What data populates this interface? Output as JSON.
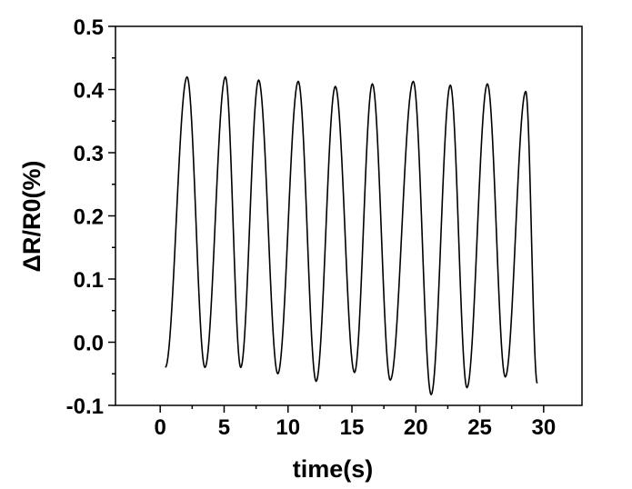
{
  "chart_data": {
    "type": "line",
    "title": "",
    "xlabel": "time(s)",
    "ylabel": "ΔR/R0(%)",
    "xlim": [
      -3.5,
      33
    ],
    "ylim": [
      -0.1,
      0.5
    ],
    "xticks": [
      0,
      5,
      10,
      15,
      20,
      25,
      30
    ],
    "xtick_labels": [
      "0",
      "5",
      "10",
      "15",
      "20",
      "25",
      "30"
    ],
    "yticks": [
      -0.1,
      0.0,
      0.1,
      0.2,
      0.3,
      0.4,
      0.5
    ],
    "ytick_labels": [
      "-0.1",
      "0.0",
      "0.1",
      "0.2",
      "0.3",
      "0.4",
      "0.5"
    ],
    "grid": false,
    "legend": "none",
    "line_color": "#000000",
    "series": [
      {
        "x": [
          0.4,
          2.1,
          3.5,
          5.1,
          6.3,
          7.7,
          9.2,
          10.8,
          12.2,
          13.7,
          15.2,
          16.6,
          18.0,
          19.8,
          21.2,
          22.7,
          24.0,
          25.6,
          27.0,
          28.6,
          29.5
        ],
        "values": [
          -0.04,
          0.42,
          -0.04,
          0.42,
          -0.04,
          0.415,
          -0.05,
          0.413,
          -0.062,
          0.405,
          -0.048,
          0.409,
          -0.06,
          0.413,
          -0.083,
          0.407,
          -0.072,
          0.409,
          -0.055,
          0.397,
          -0.065
        ]
      }
    ]
  }
}
